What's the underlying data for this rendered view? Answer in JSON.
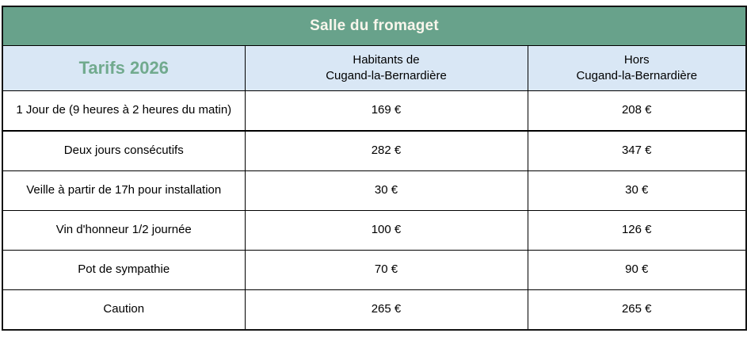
{
  "table": {
    "title": "Salle du fromaget",
    "header": {
      "tarifs": "Tarifs 2026",
      "col_habitants": "Habitants de\nCugand-la-Bernardière",
      "col_hors": "Hors\nCugand-la-Bernardière"
    },
    "rows": [
      {
        "label": "1 Jour de (9 heures à 2 heures du matin)",
        "habitants": "169 €",
        "hors": "208 €"
      },
      {
        "label": "Deux jours consécutifs",
        "habitants": "282 €",
        "hors": "347 €"
      },
      {
        "label": "Veille à partir de 17h pour installation",
        "habitants": "30 €",
        "hors": "30 €"
      },
      {
        "label": "Vin d'honneur 1/2 journée",
        "habitants": "100 €",
        "hors": "126 €"
      },
      {
        "label": "Pot de sympathie",
        "habitants": "70 €",
        "hors": "90 €"
      },
      {
        "label": "Caution",
        "habitants": "265 €",
        "hors": "265 €"
      }
    ],
    "colors": {
      "title_bg": "#68a28b",
      "title_text": "#f9f6ec",
      "header_bg": "#d9e7f5",
      "tarifs_text": "#71aa8e",
      "border": "#000000"
    }
  }
}
